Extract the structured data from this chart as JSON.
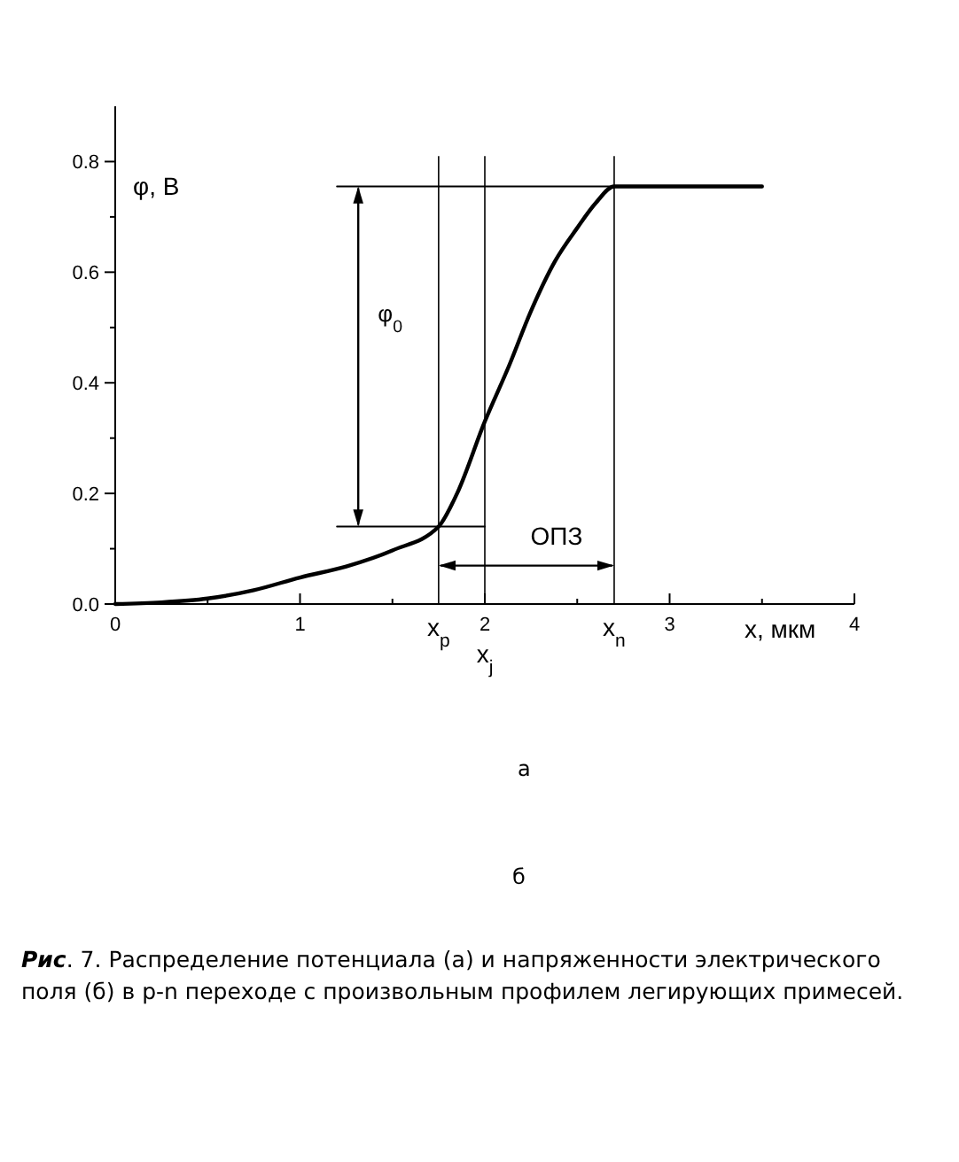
{
  "chart_data": {
    "type": "line",
    "xlabel": "x, мкм",
    "ylabel": "φ, В",
    "xlim": [
      0,
      4
    ],
    "ylim": [
      0,
      0.9
    ],
    "xticks": [
      0,
      {
        "value": 0.5,
        "label": null
      },
      1,
      {
        "value": 1.5,
        "label": null
      },
      2,
      {
        "value": 2.5,
        "label": null
      },
      3,
      {
        "value": 3.5,
        "label": null
      },
      4
    ],
    "yticks": [
      {
        "value": 0,
        "label": "0.0"
      },
      {
        "value": 0.1,
        "label": null
      },
      {
        "value": 0.2,
        "label": "0.2"
      },
      {
        "value": 0.3,
        "label": null
      },
      {
        "value": 0.4,
        "label": "0.4"
      },
      {
        "value": 0.5,
        "label": null
      },
      {
        "value": 0.6,
        "label": "0.6"
      },
      {
        "value": 0.7,
        "label": null
      },
      {
        "value": 0.8,
        "label": "0.8"
      }
    ],
    "series": [
      {
        "color": "#000000",
        "x": [
          0,
          0.25,
          0.5,
          0.75,
          1,
          1.25,
          1.5,
          1.75,
          1.85,
          2,
          2.13,
          2.25,
          2.38,
          2.5,
          2.6,
          2.7,
          3,
          3.5
        ],
        "values": [
          0,
          0.003,
          0.01,
          0.025,
          0.048,
          0.068,
          0.097,
          0.14,
          0.2,
          0.33,
          0.43,
          0.53,
          0.62,
          0.68,
          0.725,
          0.755,
          0.755,
          0.755
        ]
      },
      {
        "color": "#000000",
        "x": [
          1.2,
          2.7
        ],
        "values": [
          0.755,
          0.755
        ]
      },
      {
        "color": "#000000",
        "x": [
          1.2,
          2
        ],
        "values": [
          0.14,
          0.14
        ]
      }
    ],
    "ref_lines": [
      {
        "axis": "x",
        "value": 1.75,
        "label": "x$_{p}$"
      },
      {
        "axis": "x",
        "value": 2,
        "label": "x$_{j}$"
      },
      {
        "axis": "x",
        "value": 2.7,
        "label": "x$_{n}$"
      }
    ],
    "annotations": [
      "φ$_{0}$",
      "ОПЗ",
      "а",
      "б",
      "Рис. 7. Распределение потенциала (а) и напряженности электрического поля (б) в p-n переходе с произвольным профилем легирующих примесей."
    ]
  }
}
